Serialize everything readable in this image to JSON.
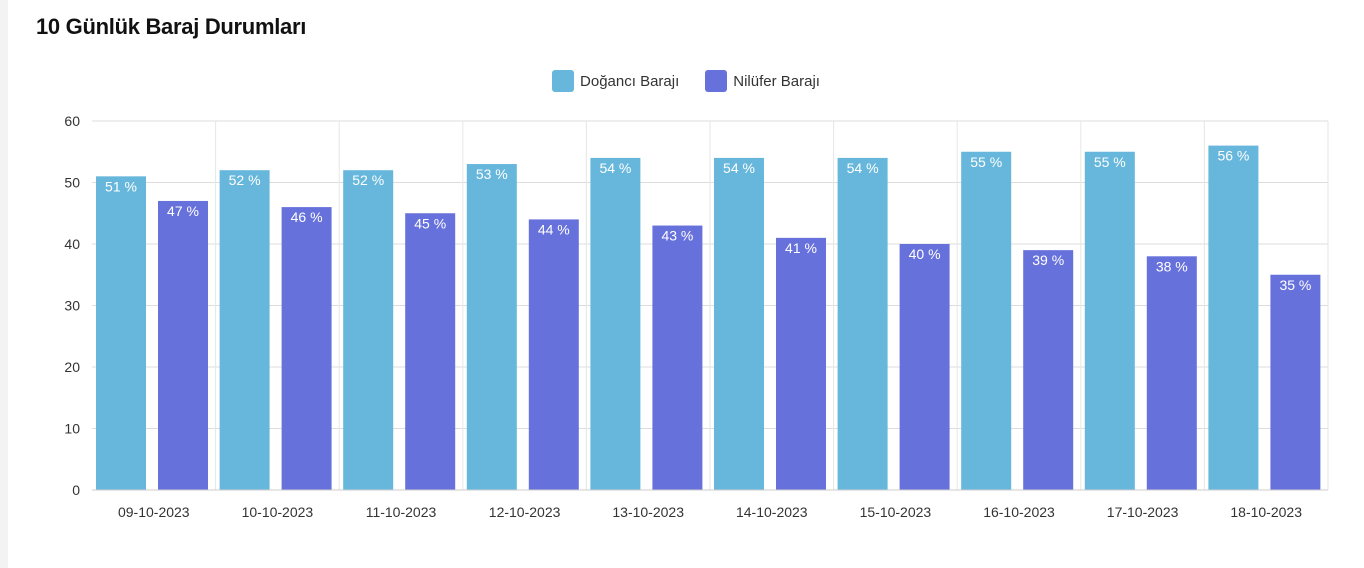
{
  "title": "10 Günlük Baraj Durumları",
  "chart_data": {
    "type": "bar",
    "categories": [
      "09-10-2023",
      "10-10-2023",
      "11-10-2023",
      "12-10-2023",
      "13-10-2023",
      "14-10-2023",
      "15-10-2023",
      "16-10-2023",
      "17-10-2023",
      "18-10-2023"
    ],
    "series": [
      {
        "name": "Doğancı Barajı",
        "color": "#67b7dc",
        "values": [
          51,
          52,
          52,
          53,
          54,
          54,
          54,
          55,
          55,
          56
        ]
      },
      {
        "name": "Nilüfer Barajı",
        "color": "#6771dc",
        "values": [
          47,
          46,
          45,
          44,
          43,
          41,
          40,
          39,
          38,
          35
        ]
      }
    ],
    "value_suffix": " %",
    "ylim": [
      0,
      60
    ],
    "yticks": [
      0,
      10,
      20,
      30,
      40,
      50,
      60
    ],
    "xlabel": "",
    "ylabel": "",
    "legend_position": "top-center",
    "grid": true
  }
}
